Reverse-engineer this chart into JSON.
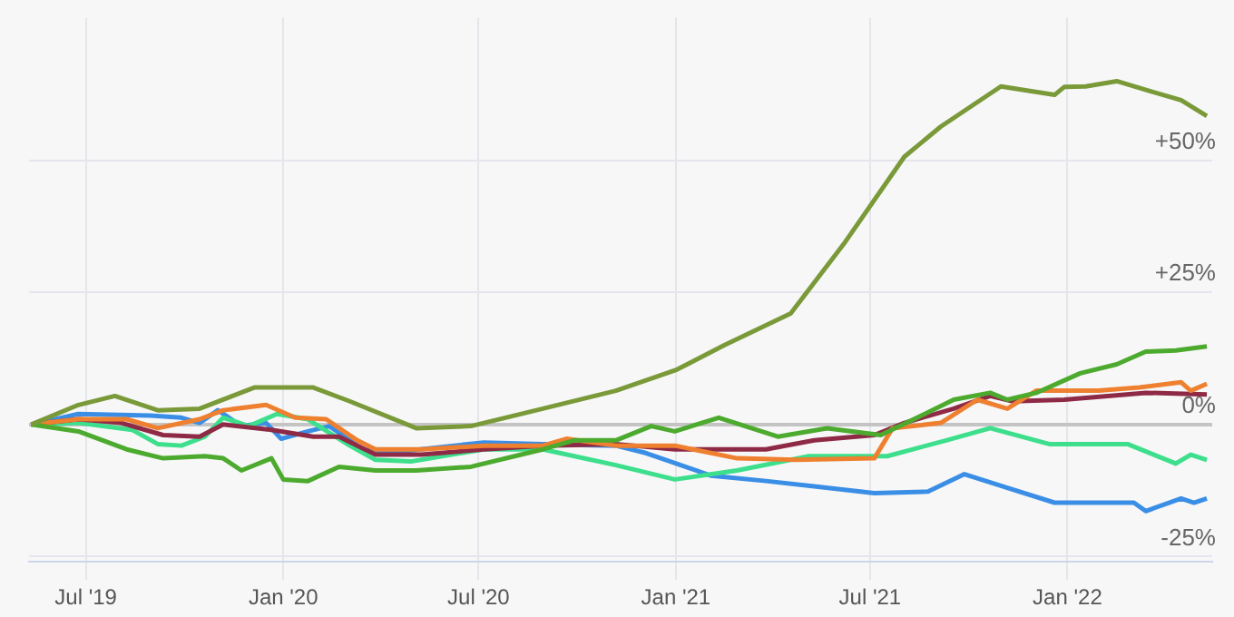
{
  "chart_data": {
    "type": "line",
    "grid": true,
    "legend": false,
    "marker": "none",
    "line_style": "solid",
    "xlim": [
      "2019-05-09",
      "2022-05-16"
    ],
    "xticks": [
      {
        "value": "2019-07-01",
        "label": "Jul '19"
      },
      {
        "value": "2020-01-01",
        "label": "Jan '20"
      },
      {
        "value": "2020-07-01",
        "label": "Jul '20"
      },
      {
        "value": "2021-01-01",
        "label": "Jan '21"
      },
      {
        "value": "2021-07-01",
        "label": "Jul '21"
      },
      {
        "value": "2022-01-01",
        "label": "Jan '22"
      }
    ],
    "ylim": [
      -26,
      77
    ],
    "yticks": [
      {
        "value": -25,
        "label": "-25%"
      },
      {
        "value": 0,
        "label": "0%"
      },
      {
        "value": 25,
        "label": "+25%"
      },
      {
        "value": 50,
        "label": "+50%"
      }
    ],
    "series": [
      {
        "color": "#7a9a3a",
        "x": [
          "2019-05-11",
          "2019-06-24",
          "2019-07-28",
          "2019-09-06",
          "2019-10-15",
          "2019-12-05",
          "2020-01-29",
          "2020-03-03",
          "2020-05-04",
          "2020-06-24",
          "2020-08-30",
          "2020-11-06",
          "2021-01-02",
          "2021-02-15",
          "2021-04-18",
          "2021-06-08",
          "2021-08-02",
          "2021-09-05",
          "2021-10-31",
          "2021-12-20",
          "2021-12-29",
          "2022-01-18",
          "2022-02-16",
          "2022-03-21",
          "2022-04-17",
          "2022-05-11"
        ],
        "values": [
          0,
          3.7,
          5.4,
          2.7,
          3,
          7,
          7,
          4.4,
          -0.7,
          -0.3,
          3,
          6.4,
          10.4,
          15,
          21,
          34.6,
          50.7,
          56.4,
          64,
          62.4,
          63.9,
          64,
          65,
          63,
          61.4,
          58.4
        ]
      },
      {
        "color": "#4caa2e",
        "x": [
          "2019-05-11",
          "2019-06-24",
          "2019-08-08",
          "2019-09-11",
          "2019-10-20",
          "2019-11-06",
          "2019-11-23",
          "2019-12-21",
          "2020-01-01",
          "2020-01-24",
          "2020-02-22",
          "2020-03-27",
          "2020-05-04",
          "2020-06-24",
          "2020-08-30",
          "2020-09-28",
          "2020-11-06",
          "2020-12-09",
          "2020-12-31",
          "2021-02-10",
          "2021-04-06",
          "2021-05-22",
          "2021-07-11",
          "2021-08-14",
          "2021-09-17",
          "2021-10-21",
          "2021-11-06",
          "2021-12-03",
          "2022-01-13",
          "2022-02-16",
          "2022-03-15",
          "2022-04-12",
          "2022-05-11"
        ],
        "values": [
          0,
          -1.3,
          -4.7,
          -6.4,
          -6,
          -6.4,
          -8.7,
          -6.4,
          -10.4,
          -10.7,
          -8,
          -8.7,
          -8.7,
          -8,
          -4.7,
          -3,
          -3,
          -0.3,
          -1.3,
          1.3,
          -2.3,
          -0.7,
          -2,
          1.3,
          4.7,
          6,
          4.7,
          6,
          9.7,
          11.4,
          13.8,
          14,
          14.8
        ]
      },
      {
        "color": "#ee8030",
        "x": [
          "2019-05-11",
          "2019-06-24",
          "2019-08-08",
          "2019-09-06",
          "2019-10-15",
          "2019-11-06",
          "2019-12-16",
          "2020-01-12",
          "2020-02-10",
          "2020-03-10",
          "2020-03-27",
          "2020-05-09",
          "2020-07-06",
          "2020-08-30",
          "2020-09-21",
          "2020-11-06",
          "2020-12-31",
          "2021-02-27",
          "2021-04-23",
          "2021-07-05",
          "2021-07-22",
          "2021-09-05",
          "2021-10-09",
          "2021-11-06",
          "2021-12-03",
          "2022-01-30",
          "2022-03-09",
          "2022-04-17",
          "2022-04-26",
          "2022-05-11"
        ],
        "values": [
          0,
          1,
          1,
          -0.7,
          1,
          2.7,
          3.7,
          1.3,
          1,
          -3,
          -4.7,
          -4.7,
          -4,
          -4,
          -2.7,
          -4,
          -4,
          -6.4,
          -6.7,
          -6.4,
          -0.7,
          0.3,
          4.7,
          3,
          6.4,
          6.4,
          7,
          8,
          6.4,
          7.7
        ]
      },
      {
        "color": "#8e2a45",
        "x": [
          "2019-05-11",
          "2019-06-24",
          "2019-08-03",
          "2019-09-11",
          "2019-10-15",
          "2019-11-06",
          "2019-12-21",
          "2020-01-29",
          "2020-02-22",
          "2020-03-27",
          "2020-05-09",
          "2020-07-06",
          "2020-08-30",
          "2020-11-06",
          "2020-12-31",
          "2021-03-26",
          "2021-05-10",
          "2021-07-05",
          "2021-08-02",
          "2021-09-17",
          "2021-10-21",
          "2021-11-11",
          "2021-12-29",
          "2022-03-15",
          "2022-05-11"
        ],
        "values": [
          0,
          1,
          0.3,
          -2,
          -2.3,
          0,
          -1,
          -2.3,
          -2.3,
          -5.7,
          -5.7,
          -4.7,
          -4,
          -3.7,
          -4.7,
          -4.7,
          -3,
          -2,
          0.3,
          3,
          5.4,
          4.4,
          4.7,
          6,
          5.7
        ]
      },
      {
        "color": "#3ddf8c",
        "x": [
          "2019-05-11",
          "2019-06-24",
          "2019-08-13",
          "2019-09-06",
          "2019-09-28",
          "2019-10-20",
          "2019-11-06",
          "2019-11-30",
          "2019-12-26",
          "2020-01-24",
          "2020-03-03",
          "2020-03-27",
          "2020-04-29",
          "2020-07-06",
          "2020-08-30",
          "2020-11-06",
          "2020-12-31",
          "2021-02-27",
          "2021-05-05",
          "2021-07-17",
          "2021-09-10",
          "2021-10-21",
          "2021-12-15",
          "2022-02-26",
          "2022-04-12",
          "2022-04-26",
          "2022-05-11"
        ],
        "values": [
          0,
          0.3,
          -1,
          -3.7,
          -4,
          -2.3,
          1.3,
          -0.3,
          2,
          1,
          -4,
          -6.7,
          -7,
          -4.7,
          -4.7,
          -7.7,
          -10.4,
          -8.7,
          -6,
          -6,
          -3,
          -0.7,
          -3.7,
          -3.7,
          -7.4,
          -5.7,
          -6.7
        ]
      },
      {
        "color": "#3a8ee6",
        "x": [
          "2019-05-11",
          "2019-06-24",
          "2019-08-30",
          "2019-09-28",
          "2019-10-15",
          "2019-11-01",
          "2019-11-23",
          "2019-12-16",
          "2019-12-30",
          "2020-01-24",
          "2020-02-13",
          "2020-03-15",
          "2020-04-06",
          "2020-07-06",
          "2020-08-30",
          "2020-11-06",
          "2020-12-04",
          "2021-02-03",
          "2021-03-26",
          "2021-05-10",
          "2021-07-05",
          "2021-08-24",
          "2021-09-27",
          "2021-11-06",
          "2021-12-20",
          "2022-03-04",
          "2022-03-15",
          "2022-04-17",
          "2022-04-29",
          "2022-05-11"
        ],
        "values": [
          0,
          2,
          1.7,
          1.3,
          0.3,
          2.7,
          -0.3,
          0.3,
          -2.7,
          -1.3,
          -0.3,
          -4.7,
          -5.4,
          -3.4,
          -3.7,
          -4,
          -5.4,
          -9.7,
          -10.7,
          -11.7,
          -13,
          -12.7,
          -9.4,
          -12,
          -14.8,
          -14.8,
          -16.4,
          -14,
          -14.8,
          -14
        ]
      }
    ]
  }
}
